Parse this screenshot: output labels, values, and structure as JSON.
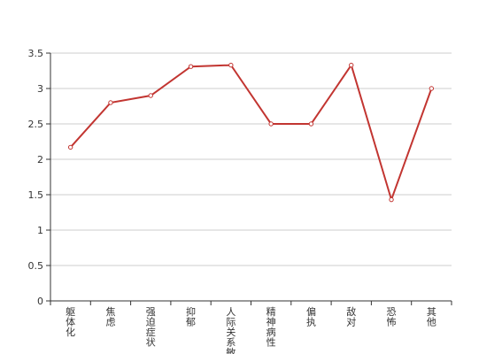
{
  "chart_data": {
    "type": "line",
    "categories": [
      "躯体化",
      "焦虑",
      "强迫症状",
      "抑郁",
      "人际关系敏感",
      "精神病性",
      "偏执",
      "敌对",
      "恐怖",
      "其他"
    ],
    "series": [
      {
        "color": "#c23531",
        "values": [
          2.17,
          2.8,
          2.9,
          3.31,
          3.33,
          2.5,
          2.5,
          3.33,
          1.43,
          3.0
        ]
      }
    ],
    "ylim": [
      0,
      3.5
    ],
    "yticks": [
      0,
      0.5,
      1,
      1.5,
      2,
      2.5,
      3,
      3.5
    ],
    "grid": true
  }
}
